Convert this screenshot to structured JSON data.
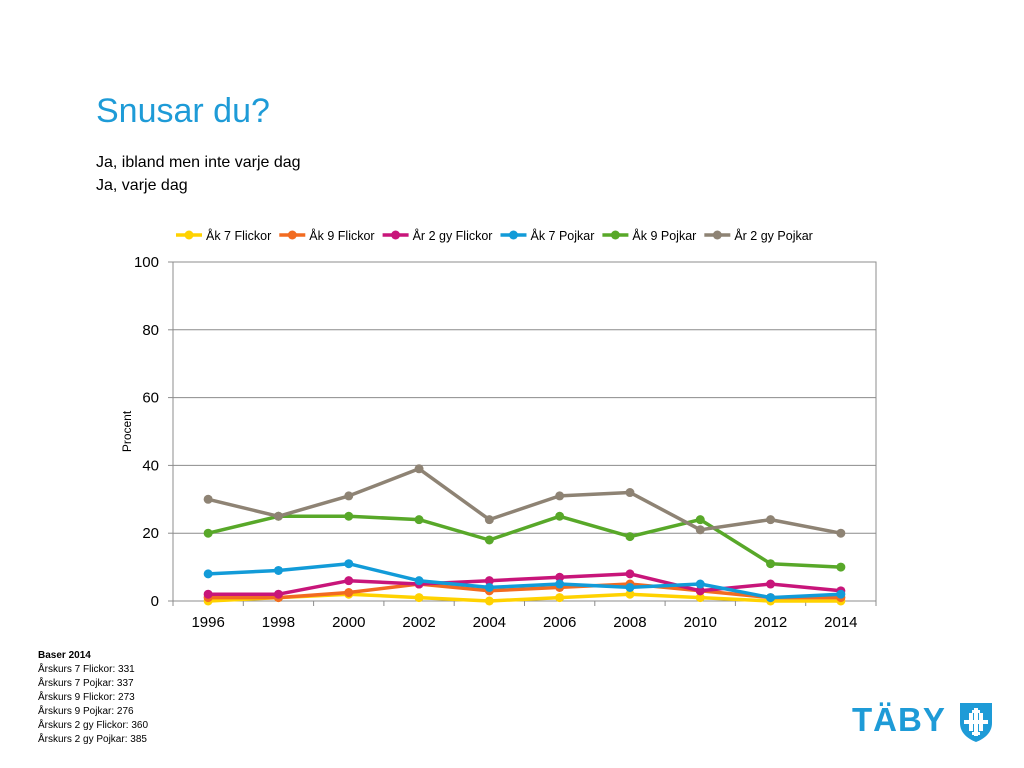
{
  "page": {
    "title": "Snusar du?",
    "subtitle_lines": [
      "Ja, ibland men inte varje dag",
      "Ja, varje dag"
    ]
  },
  "notes": {
    "title": "Baser 2014",
    "lines": [
      "Årskurs 7 Flickor: 331",
      "Årskurs 7 Pojkar: 337",
      "Årskurs 9 Flickor: 273",
      "Årskurs 9 Pojkar: 276",
      "Årskurs 2 gy Flickor: 360",
      "Årskurs 2 gy Pojkar: 385"
    ]
  },
  "logo": {
    "text": "TÄBY",
    "emblem": "taby-shield-icon"
  },
  "chart_data": {
    "type": "line",
    "title": "",
    "xlabel": "",
    "ylabel": "Procent",
    "x": [
      "1996",
      "1998",
      "2000",
      "2002",
      "2004",
      "2006",
      "2008",
      "2010",
      "2012",
      "2014"
    ],
    "ylim": [
      0,
      100
    ],
    "yticks": [
      0,
      20,
      40,
      60,
      80,
      100
    ],
    "grid": true,
    "legend_position": "top",
    "series": [
      {
        "name": "Åk 7 Flickor",
        "color": "#ffd200",
        "values": [
          0,
          1,
          2,
          1,
          0,
          1,
          2,
          1,
          0,
          0
        ]
      },
      {
        "name": "Åk 9 Flickor",
        "color": "#f26b21",
        "values": [
          1,
          1,
          2.5,
          5,
          3,
          4,
          5,
          3,
          1,
          1
        ]
      },
      {
        "name": "År 2 gy Flickor",
        "color": "#c8157a",
        "values": [
          2,
          2,
          6,
          5,
          6,
          7,
          8,
          3,
          5,
          3
        ]
      },
      {
        "name": "Åk 7 Pojkar",
        "color": "#129bd8",
        "values": [
          8,
          9,
          11,
          6,
          4,
          5,
          4,
          5,
          1,
          2
        ]
      },
      {
        "name": "Åk 9 Pojkar",
        "color": "#58a829",
        "values": [
          20,
          25,
          25,
          24,
          18,
          25,
          19,
          24,
          11,
          10
        ]
      },
      {
        "name": "År 2 gy Pojkar",
        "color": "#8e8374",
        "values": [
          30,
          25,
          31,
          39,
          24,
          31,
          32,
          21,
          24,
          20
        ]
      }
    ]
  }
}
